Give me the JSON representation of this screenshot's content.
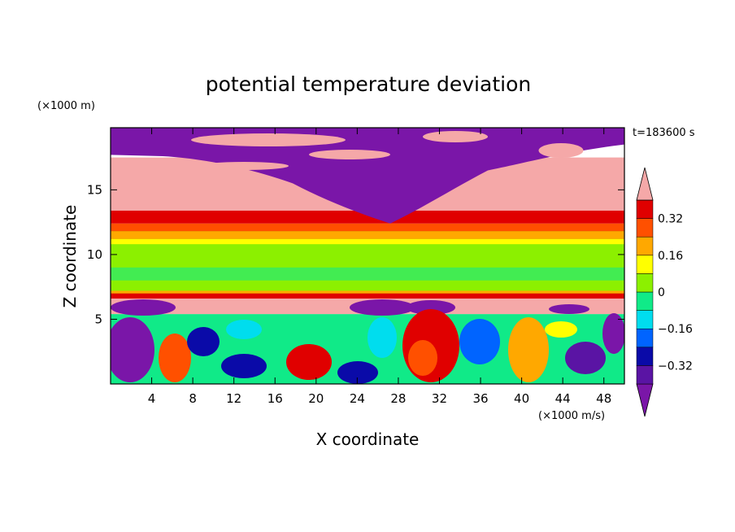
{
  "chart_data": {
    "type": "heatmap",
    "title": "potential temperature deviation",
    "time_label": "t=183600 s",
    "xlabel": "X coordinate",
    "ylabel": "Z coordinate",
    "x_unit": "(×1000 m/s)",
    "y_unit": "(×1000 m)",
    "xlim": [
      0,
      50
    ],
    "ylim": [
      0,
      19.8
    ],
    "x_ticks": [
      4,
      8,
      12,
      16,
      20,
      24,
      28,
      32,
      36,
      40,
      44,
      48
    ],
    "y_ticks": [
      5,
      10,
      15
    ],
    "colorbar": {
      "levels": [
        -0.4,
        -0.32,
        -0.24,
        -0.16,
        -0.08,
        0,
        0.08,
        0.16,
        0.24,
        0.32,
        0.4
      ],
      "labels": [
        "0.32",
        "0.16",
        "0",
        "−0.16",
        "−0.32"
      ],
      "label_values": [
        0.32,
        0.16,
        0,
        -0.16,
        -0.32
      ],
      "colors": [
        "#7a16a8",
        "#5a14a4",
        "#0a0aa8",
        "#0064ff",
        "#00ddee",
        "#10ea88",
        "#8cf000",
        "#ffff00",
        "#ffa800",
        "#ff5000",
        "#e00000",
        "#f5a8a8"
      ],
      "extend": "both"
    },
    "bands": [
      {
        "z": [
          0,
          5.4
        ],
        "description": "turbulent mixed layer, mixed values -0.4 to 0.4"
      },
      {
        "z": [
          5.4,
          6.8
        ],
        "value": 0.45
      },
      {
        "z": [
          6.8,
          12.2
        ],
        "value": 0.02
      },
      {
        "z": [
          12.2,
          13.4
        ],
        "value": 0.3
      },
      {
        "z": [
          13.4,
          17.5
        ],
        "value": 0.45
      },
      {
        "z": [
          15,
          19.8
        ],
        "value": -0.45
      }
    ]
  }
}
